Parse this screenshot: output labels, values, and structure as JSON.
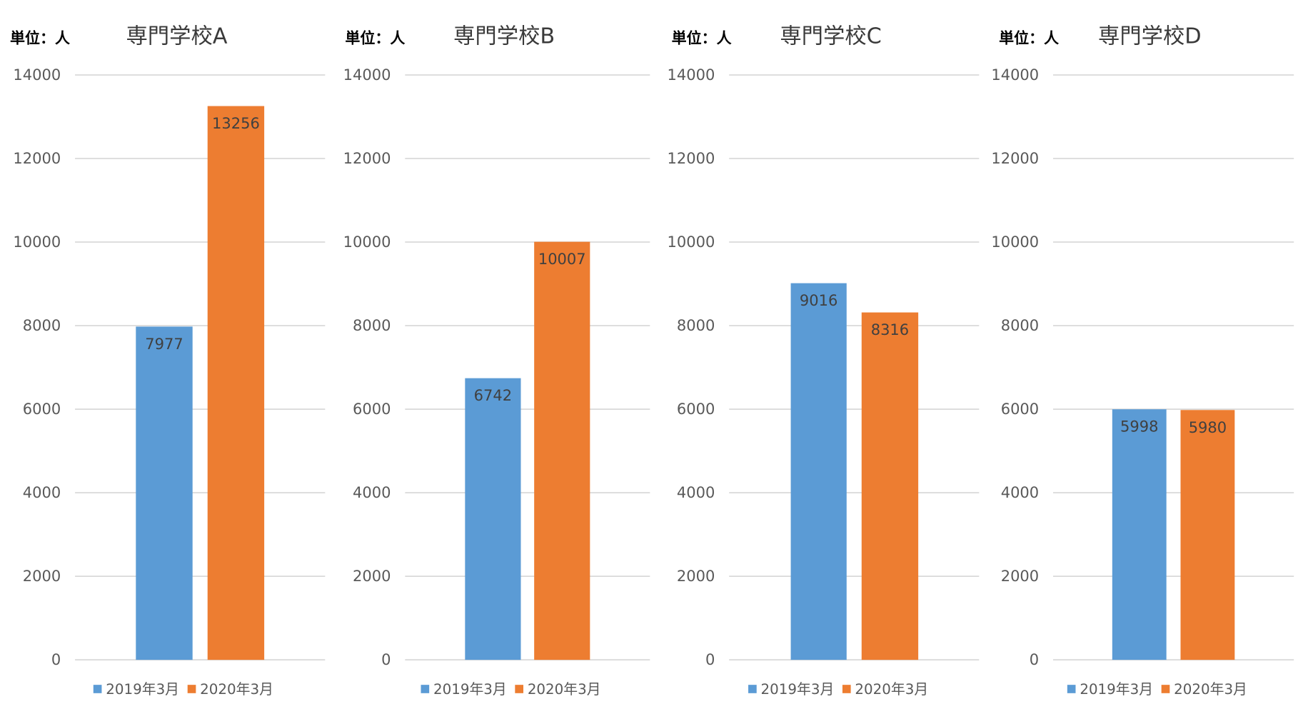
{
  "chart_data": [
    {
      "type": "bar",
      "title": "専門学校A",
      "unit_label": "単位：人",
      "categories": [
        "2019年3月",
        "2020年3月"
      ],
      "values": [
        7977,
        13256
      ],
      "data_labels": [
        "7977",
        "13256"
      ],
      "colors": [
        "#5b9bd5",
        "#ed7d31"
      ],
      "ylim": [
        0,
        14000
      ],
      "yticks": [
        0,
        2000,
        4000,
        6000,
        8000,
        10000,
        12000,
        14000
      ],
      "ytick_labels": [
        "0",
        "2000",
        "4000",
        "6000",
        "8000",
        "10000",
        "12000",
        "14000"
      ],
      "grid": true,
      "legend": "bottom",
      "legend_entries": [
        "2019年3月",
        "2020年3月"
      ]
    },
    {
      "type": "bar",
      "title": "専門学校B",
      "unit_label": "単位：人",
      "categories": [
        "2019年3月",
        "2020年3月"
      ],
      "values": [
        6742,
        10007
      ],
      "data_labels": [
        "6742",
        "10007"
      ],
      "colors": [
        "#5b9bd5",
        "#ed7d31"
      ],
      "ylim": [
        0,
        14000
      ],
      "yticks": [
        0,
        2000,
        4000,
        6000,
        8000,
        10000,
        12000,
        14000
      ],
      "ytick_labels": [
        "0",
        "2000",
        "4000",
        "6000",
        "8000",
        "10000",
        "12000",
        "14000"
      ],
      "grid": true,
      "legend": "bottom",
      "legend_entries": [
        "2019年3月",
        "2020年3月"
      ]
    },
    {
      "type": "bar",
      "title": "専門学校C",
      "unit_label": "単位：人",
      "categories": [
        "2019年3月",
        "2020年3月"
      ],
      "values": [
        9016,
        8316
      ],
      "data_labels": [
        "9016",
        "8316"
      ],
      "colors": [
        "#5b9bd5",
        "#ed7d31"
      ],
      "ylim": [
        0,
        14000
      ],
      "yticks": [
        0,
        2000,
        4000,
        6000,
        8000,
        10000,
        12000,
        14000
      ],
      "ytick_labels": [
        "0",
        "2000",
        "4000",
        "6000",
        "8000",
        "10000",
        "12000",
        "14000"
      ],
      "grid": true,
      "legend": "bottom",
      "legend_entries": [
        "2019年3月",
        "2020年3月"
      ]
    },
    {
      "type": "bar",
      "title": "専門学校D",
      "unit_label": "単位：人",
      "categories": [
        "2019年3月",
        "2020年3月"
      ],
      "values": [
        5998,
        5980
      ],
      "data_labels": [
        "5998",
        "5980"
      ],
      "colors": [
        "#5b9bd5",
        "#ed7d31"
      ],
      "ylim": [
        0,
        14000
      ],
      "yticks": [
        0,
        2000,
        4000,
        6000,
        8000,
        10000,
        12000,
        14000
      ],
      "ytick_labels": [
        "0",
        "2000",
        "4000",
        "6000",
        "8000",
        "10000",
        "12000",
        "14000"
      ],
      "grid": true,
      "legend": "bottom",
      "legend_entries": [
        "2019年3月",
        "2020年3月"
      ]
    }
  ]
}
